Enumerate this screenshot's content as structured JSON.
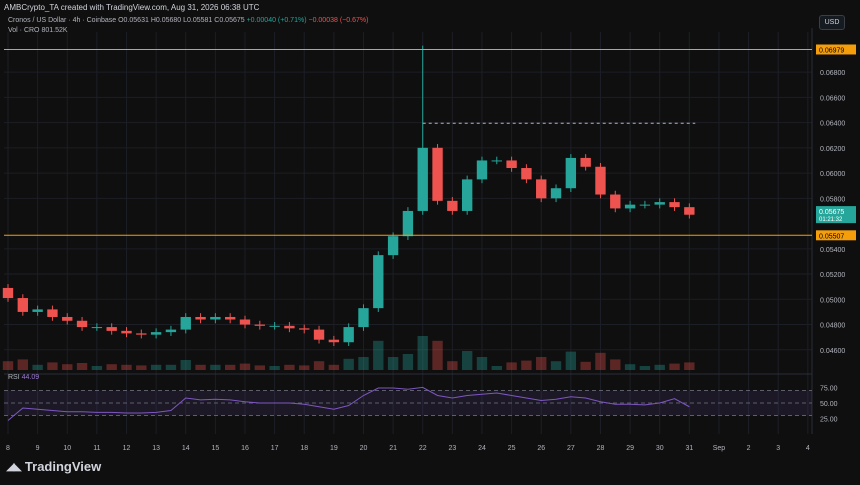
{
  "header": {
    "caption": "AMBCrypto_TA created with TradingView.com, Aug 31, 2026 06:38 UTC"
  },
  "legend": {
    "symbol": "Cronos / US Dollar · 4h · Coinbase",
    "o": "O0.05631",
    "h": "H0.05680",
    "l": "L0.05581",
    "c": "C0.05675",
    "change": "+0.00040 (+0.71%)",
    "change2": "−0.00038 (−0.67%)",
    "vol": "Vol · CRO",
    "vol_value": "801.52K"
  },
  "currency": "USD",
  "brand": "TradingView",
  "rsi_legend": {
    "label": "RSI",
    "value": "44.09"
  },
  "colors": {
    "up": "#26a69a",
    "down": "#ef5350",
    "level": "#f59e0b",
    "rsi": "#7e57c2",
    "bg": "#0f0f0f"
  },
  "chart_data": [
    {
      "type": "line",
      "ylabel": "",
      "ylim": [
        0.0444,
        0.0707
      ],
      "y_ticks": [
        "0.06800",
        "0.06600",
        "0.06400",
        "0.06200",
        "0.06000",
        "0.05800",
        "0.05400",
        "0.05200",
        "0.05000",
        "0.04800",
        "0.04600"
      ],
      "x_ticks": [
        "8",
        "9",
        "10",
        "11",
        "12",
        "13",
        "14",
        "15",
        "16",
        "17",
        "18",
        "19",
        "20",
        "21",
        "22",
        "23",
        "24",
        "25",
        "26",
        "27",
        "28",
        "29",
        "30",
        "31",
        "Sep",
        "2",
        "3",
        "4"
      ],
      "horizontal_levels": [
        {
          "value": 0.06979,
          "label": "0.06979",
          "style": "solid"
        },
        {
          "value": 0.05507,
          "label": "0.05507",
          "style": "solid"
        },
        {
          "value": 0.06395,
          "label": "",
          "style": "dashed"
        }
      ],
      "last_price": {
        "value": 0.05675,
        "label": "0.05675",
        "countdown": "01:21:32"
      },
      "series": [
        {
          "x": [
            8.0,
            8.5,
            9.0,
            9.5,
            10.0,
            10.5,
            11.0,
            11.5,
            12.0,
            12.5,
            13.0,
            13.5,
            14.0,
            14.5,
            15.0,
            15.5,
            16.0,
            16.5,
            17.0,
            17.5,
            18.0,
            18.5,
            19.0,
            19.5,
            20.0,
            20.5,
            21.0,
            21.5,
            22.0,
            22.5,
            23.0,
            23.5,
            24.0,
            24.5,
            25.0,
            25.5,
            26.0,
            26.5,
            27.0,
            27.5,
            28.0,
            28.5,
            29.0,
            29.5,
            30.0,
            30.5,
            31.0
          ],
          "values": [
            0.0501,
            0.049,
            0.0492,
            0.0486,
            0.0483,
            0.0478,
            0.0478,
            0.0475,
            0.0473,
            0.0472,
            0.0474,
            0.0476,
            0.0486,
            0.0484,
            0.0486,
            0.0484,
            0.048,
            0.0479,
            0.0479,
            0.0477,
            0.0476,
            0.0468,
            0.0466,
            0.0478,
            0.0493,
            0.0535,
            0.055,
            0.057,
            0.062,
            0.0578,
            0.057,
            0.0595,
            0.061,
            0.061,
            0.0604,
            0.0595,
            0.058,
            0.0588,
            0.0612,
            0.0605,
            0.0583,
            0.0572,
            0.0575,
            0.0575,
            0.0577,
            0.0573,
            0.0567
          ]
        }
      ],
      "volume_note": "",
      "y_scale": "linear"
    },
    {
      "type": "line",
      "ylabel": "",
      "ylim": [
        10,
        90
      ],
      "y_ticks": [
        "75.00",
        "50.00",
        "25.00"
      ],
      "bands": [
        70,
        50,
        30
      ],
      "series": [
        {
          "name": "RSI",
          "x": [
            8.0,
            8.5,
            9.0,
            9.5,
            10.0,
            10.5,
            11.0,
            11.5,
            12.0,
            12.5,
            13.0,
            13.5,
            14.0,
            14.5,
            15.0,
            15.5,
            16.0,
            16.5,
            17.0,
            17.5,
            18.0,
            18.5,
            19.0,
            19.5,
            20.0,
            20.5,
            21.0,
            21.5,
            22.0,
            22.5,
            23.0,
            23.5,
            24.0,
            24.5,
            25.0,
            25.5,
            26.0,
            26.5,
            27.0,
            27.5,
            28.0,
            28.5,
            29.0,
            29.5,
            30.0,
            30.5,
            31.0
          ],
          "values": [
            22,
            42,
            40,
            38,
            36,
            36,
            35,
            35,
            34,
            34,
            35,
            38,
            58,
            55,
            56,
            55,
            52,
            50,
            50,
            50,
            48,
            44,
            40,
            46,
            62,
            74,
            74,
            72,
            75,
            62,
            58,
            62,
            64,
            66,
            62,
            58,
            54,
            56,
            60,
            58,
            52,
            48,
            48,
            47,
            50,
            57,
            44
          ]
        }
      ]
    }
  ]
}
